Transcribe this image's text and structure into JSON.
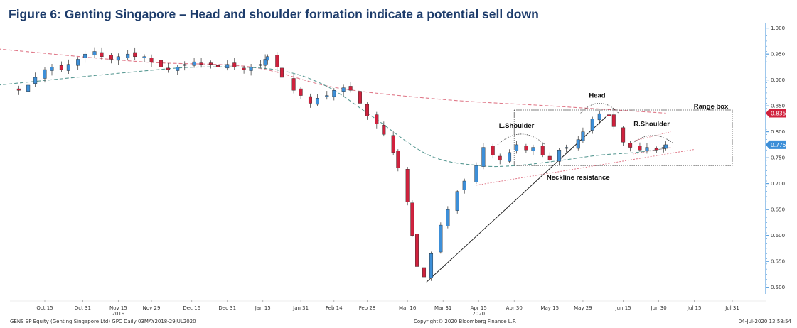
{
  "figure": {
    "title": "Figure 6: Genting Singapore – Head and shoulder formation indicate a potential sell down"
  },
  "footer": {
    "left": "GENS SP Equity (Genting Singapore Ltd) GPC  Daily 03MAY2018-29JUL2020",
    "center": "Copyright© 2020 Bloomberg Finance L.P.",
    "right": "04-Jul-2020 13:58:54"
  },
  "chart_data": {
    "type": "candlestick",
    "ylim": [
      0.49,
      1.005
    ],
    "yticks": [
      "1.000",
      "0.950",
      "0.900",
      "0.850",
      "0.800",
      "0.750",
      "0.700",
      "0.650",
      "0.600",
      "0.550",
      "0.500"
    ],
    "xticks": [
      {
        "label": "Oct 15",
        "date": "2019-10-15"
      },
      {
        "label": "Oct 31",
        "date": "2019-10-31"
      },
      {
        "label": "Nov 15",
        "date": "2019-11-15"
      },
      {
        "label": "Nov 29",
        "date": "2019-11-29"
      },
      {
        "label": "Dec 16",
        "date": "2019-12-16"
      },
      {
        "label": "Dec 31",
        "date": "2019-12-31"
      },
      {
        "label": "Jan 15",
        "date": "2020-01-15"
      },
      {
        "label": "Jan 31",
        "date": "2020-01-31"
      },
      {
        "label": "Feb 14",
        "date": "2020-02-14"
      },
      {
        "label": "Feb 28",
        "date": "2020-02-28"
      },
      {
        "label": "Mar 16",
        "date": "2020-03-16"
      },
      {
        "label": "Mar 31",
        "date": "2020-03-31"
      },
      {
        "label": "Apr 15",
        "date": "2020-04-15"
      },
      {
        "label": "Apr 30",
        "date": "2020-04-30"
      },
      {
        "label": "May 15",
        "date": "2020-05-15"
      },
      {
        "label": "May 29",
        "date": "2020-05-29"
      },
      {
        "label": "Jun 15",
        "date": "2020-06-15"
      },
      {
        "label": "Jun 30",
        "date": "2020-06-30"
      },
      {
        "label": "Jul 15",
        "date": "2020-07-15"
      },
      {
        "label": "Jul 31",
        "date": "2020-07-31"
      }
    ],
    "year_labels": [
      {
        "label": "2019",
        "date": "2019-11-15"
      },
      {
        "label": "2020",
        "date": "2020-04-15"
      }
    ],
    "close_series": [
      [
        "2019-10-01",
        0.885
      ],
      [
        "2019-10-04",
        0.88
      ],
      [
        "2019-10-08",
        0.89
      ],
      [
        "2019-10-11",
        0.905
      ],
      [
        "2019-10-15",
        0.92
      ],
      [
        "2019-10-18",
        0.925
      ],
      [
        "2019-10-22",
        0.92
      ],
      [
        "2019-10-25",
        0.93
      ],
      [
        "2019-10-29",
        0.94
      ],
      [
        "2019-11-01",
        0.95
      ],
      [
        "2019-11-05",
        0.955
      ],
      [
        "2019-11-08",
        0.945
      ],
      [
        "2019-11-12",
        0.94
      ],
      [
        "2019-11-15",
        0.945
      ],
      [
        "2019-11-19",
        0.95
      ],
      [
        "2019-11-22",
        0.945
      ],
      [
        "2019-11-26",
        0.945
      ],
      [
        "2019-11-29",
        0.935
      ],
      [
        "2019-12-03",
        0.925
      ],
      [
        "2019-12-06",
        0.92
      ],
      [
        "2019-12-10",
        0.925
      ],
      [
        "2019-12-13",
        0.93
      ],
      [
        "2019-12-17",
        0.935
      ],
      [
        "2019-12-20",
        0.93
      ],
      [
        "2019-12-24",
        0.93
      ],
      [
        "2019-12-27",
        0.925
      ],
      [
        "2019-12-31",
        0.93
      ],
      [
        "2020-01-03",
        0.925
      ],
      [
        "2020-01-07",
        0.92
      ],
      [
        "2020-01-10",
        0.925
      ],
      [
        "2020-01-14",
        0.93
      ],
      [
        "2020-01-16",
        0.94
      ],
      [
        "2020-01-17",
        0.945
      ],
      [
        "2020-01-21",
        0.925
      ],
      [
        "2020-01-23",
        0.905
      ],
      [
        "2020-01-28",
        0.88
      ],
      [
        "2020-01-31",
        0.87
      ],
      [
        "2020-02-04",
        0.855
      ],
      [
        "2020-02-07",
        0.865
      ],
      [
        "2020-02-11",
        0.87
      ],
      [
        "2020-02-14",
        0.88
      ],
      [
        "2020-02-18",
        0.885
      ],
      [
        "2020-02-21",
        0.88
      ],
      [
        "2020-02-25",
        0.855
      ],
      [
        "2020-02-28",
        0.83
      ],
      [
        "2020-03-03",
        0.815
      ],
      [
        "2020-03-06",
        0.795
      ],
      [
        "2020-03-10",
        0.76
      ],
      [
        "2020-03-12",
        0.73
      ],
      [
        "2020-03-16",
        0.665
      ],
      [
        "2020-03-18",
        0.6
      ],
      [
        "2020-03-20",
        0.54
      ],
      [
        "2020-03-23",
        0.52
      ],
      [
        "2020-03-26",
        0.565
      ],
      [
        "2020-03-30",
        0.62
      ],
      [
        "2020-04-02",
        0.65
      ],
      [
        "2020-04-06",
        0.685
      ],
      [
        "2020-04-09",
        0.705
      ],
      [
        "2020-04-14",
        0.735
      ],
      [
        "2020-04-17",
        0.77
      ],
      [
        "2020-04-21",
        0.755
      ],
      [
        "2020-04-24",
        0.745
      ],
      [
        "2020-04-28",
        0.76
      ],
      [
        "2020-05-01",
        0.775
      ],
      [
        "2020-05-05",
        0.765
      ],
      [
        "2020-05-08",
        0.77
      ],
      [
        "2020-05-12",
        0.755
      ],
      [
        "2020-05-15",
        0.745
      ],
      [
        "2020-05-19",
        0.765
      ],
      [
        "2020-05-22",
        0.77
      ],
      [
        "2020-05-27",
        0.785
      ],
      [
        "2020-05-29",
        0.8
      ],
      [
        "2020-06-02",
        0.825
      ],
      [
        "2020-06-05",
        0.835
      ],
      [
        "2020-06-09",
        0.83
      ],
      [
        "2020-06-11",
        0.81
      ],
      [
        "2020-06-15",
        0.78
      ],
      [
        "2020-06-18",
        0.77
      ],
      [
        "2020-06-22",
        0.765
      ],
      [
        "2020-06-25",
        0.77
      ],
      [
        "2020-06-29",
        0.765
      ],
      [
        "2020-07-02",
        0.77
      ],
      [
        "2020-07-03",
        0.775
      ]
    ],
    "moving_averages": [
      {
        "style": "red-dash",
        "points": [
          [
            "2019-09-25",
            0.96
          ],
          [
            "2019-11-25",
            0.935
          ],
          [
            "2020-01-10",
            0.925
          ],
          [
            "2020-02-15",
            0.885
          ],
          [
            "2020-04-01",
            0.862
          ],
          [
            "2020-05-15",
            0.85
          ],
          [
            "2020-07-03",
            0.836
          ]
        ]
      },
      {
        "style": "teal-dash",
        "points": [
          [
            "2019-09-25",
            0.89
          ],
          [
            "2019-11-20",
            0.915
          ],
          [
            "2019-12-20",
            0.925
          ],
          [
            "2020-01-20",
            0.92
          ],
          [
            "2020-02-10",
            0.89
          ],
          [
            "2020-03-01",
            0.83
          ],
          [
            "2020-03-25",
            0.755
          ],
          [
            "2020-04-15",
            0.735
          ],
          [
            "2020-05-01",
            0.735
          ],
          [
            "2020-05-20",
            0.745
          ],
          [
            "2020-06-05",
            0.755
          ],
          [
            "2020-06-20",
            0.76
          ],
          [
            "2020-07-03",
            0.768
          ]
        ]
      }
    ],
    "annotations": {
      "texts": [
        "Head",
        "L.Shoulder",
        "R.Shoulder",
        "Range box",
        "Neckline resistance"
      ],
      "trendline": [
        [
          "2020-03-24",
          0.51
        ],
        [
          "2020-06-08",
          0.83
        ]
      ],
      "neckline": [
        [
          "2020-04-14",
          0.697
        ],
        [
          "2020-07-15",
          0.766
        ]
      ],
      "range_box": {
        "x0": "2020-04-30",
        "x1": "2020-07-31",
        "y0": 0.735,
        "y1": 0.842
      }
    },
    "last_values": [
      {
        "label": "0.8359",
        "value": 0.8359,
        "color": "#d0213d"
      },
      {
        "label": "0.775",
        "value": 0.775,
        "color": "#3d8fd8"
      }
    ],
    "colors": {
      "up": "#3d8fd8",
      "down": "#d0213d",
      "ma_red": "#e07a8a",
      "ma_teal": "#5a9a94",
      "axis": "#3d8fd8"
    }
  }
}
